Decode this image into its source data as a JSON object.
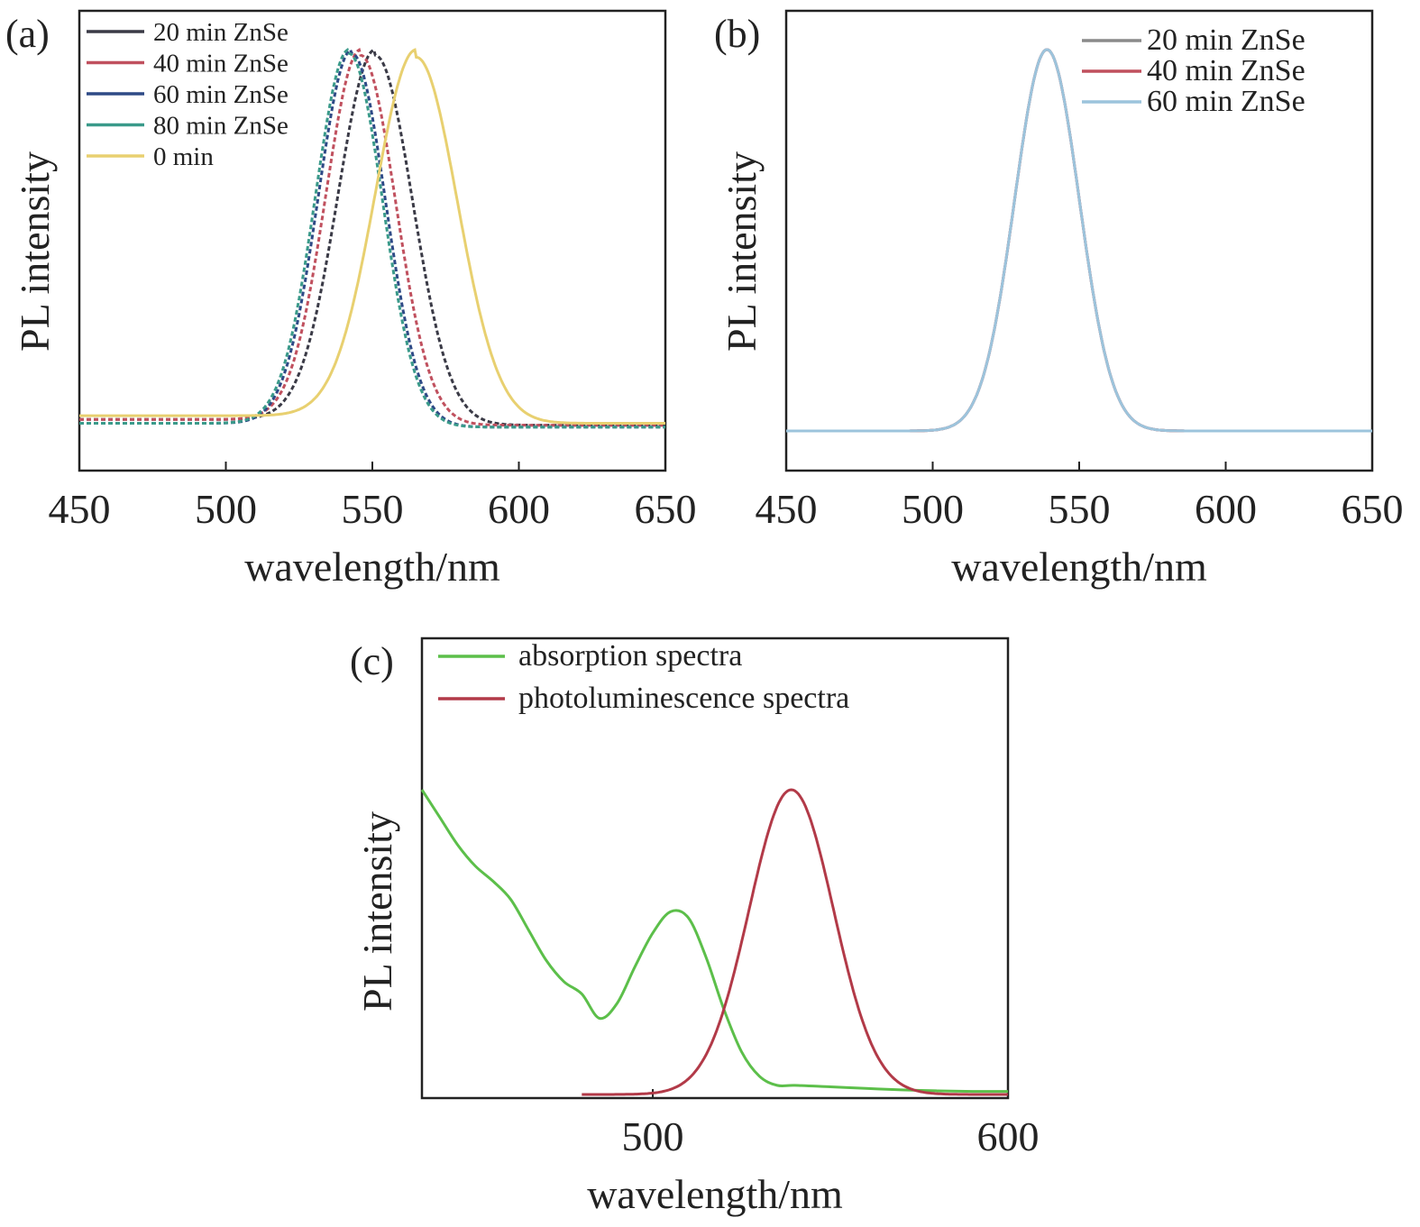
{
  "chart_data": [
    {
      "panel": "(a)",
      "type": "line",
      "xlabel": "wavelength/nm",
      "ylabel": "PL intensity",
      "xlim": [
        450,
        650
      ],
      "xticks": [
        "450",
        "500",
        "550",
        "600",
        "650"
      ],
      "legend_position": "top-left",
      "series": [
        {
          "name": "20 min ZnSe",
          "color": "#3a3a46",
          "peak": 551,
          "fwhm": 30,
          "baseline": 0.03
        },
        {
          "name": "40 min ZnSe",
          "color": "#c0505e",
          "peak": 546,
          "fwhm": 28,
          "baseline": 0.03
        },
        {
          "name": "60 min ZnSe",
          "color": "#2e4a86",
          "peak": 543,
          "fwhm": 27,
          "baseline": 0.02
        },
        {
          "name": "80 min ZnSe",
          "color": "#3a9a8a",
          "peak": 542,
          "fwhm": 27,
          "baseline": 0.02
        },
        {
          "name": "0 min",
          "color": "#e8d070",
          "peak": 565,
          "fwhm": 33,
          "baseline": 0.04
        }
      ]
    },
    {
      "panel": "(b)",
      "type": "line",
      "xlabel": "wavelength/nm",
      "ylabel": "PL intensity",
      "xlim": [
        450,
        650
      ],
      "xticks": [
        "450",
        "500",
        "550",
        "600",
        "650"
      ],
      "legend_position": "top-right",
      "series": [
        {
          "name": "20 min ZnSe",
          "color": "#8a8a8a",
          "peak": 539,
          "fwhm": 26,
          "baseline": 0.0
        },
        {
          "name": "40 min ZnSe",
          "color": "#c0505e",
          "peak": 539,
          "fwhm": 26,
          "baseline": 0.0
        },
        {
          "name": "60 min ZnSe",
          "color": "#9cc4dc",
          "peak": 539,
          "fwhm": 26,
          "baseline": 0.0
        }
      ]
    },
    {
      "panel": "(c)",
      "type": "line",
      "xlabel": "wavelength/nm",
      "ylabel": "PL intensity",
      "xlim": [
        435,
        600
      ],
      "xticks": [
        "500",
        "600"
      ],
      "legend_position": "top-left",
      "series": [
        {
          "name": "absorption spectra",
          "color": "#5cbf4a",
          "x": [
            435,
            440,
            445,
            450,
            455,
            460,
            465,
            470,
            475,
            480,
            485,
            490,
            495,
            500,
            505,
            510,
            515,
            520,
            525,
            530,
            535,
            540,
            550,
            560,
            570,
            580,
            590,
            600
          ],
          "y": [
            1.0,
            0.91,
            0.82,
            0.75,
            0.7,
            0.64,
            0.54,
            0.44,
            0.37,
            0.33,
            0.25,
            0.3,
            0.42,
            0.53,
            0.6,
            0.58,
            0.45,
            0.28,
            0.14,
            0.06,
            0.03,
            0.03,
            0.025,
            0.02,
            0.015,
            0.012,
            0.01,
            0.01
          ]
        },
        {
          "name": "photoluminescence spectra",
          "color": "#b23a48",
          "peak": 539,
          "fwhm": 28,
          "baseline": 0.0,
          "x_start": 480
        }
      ]
    }
  ]
}
